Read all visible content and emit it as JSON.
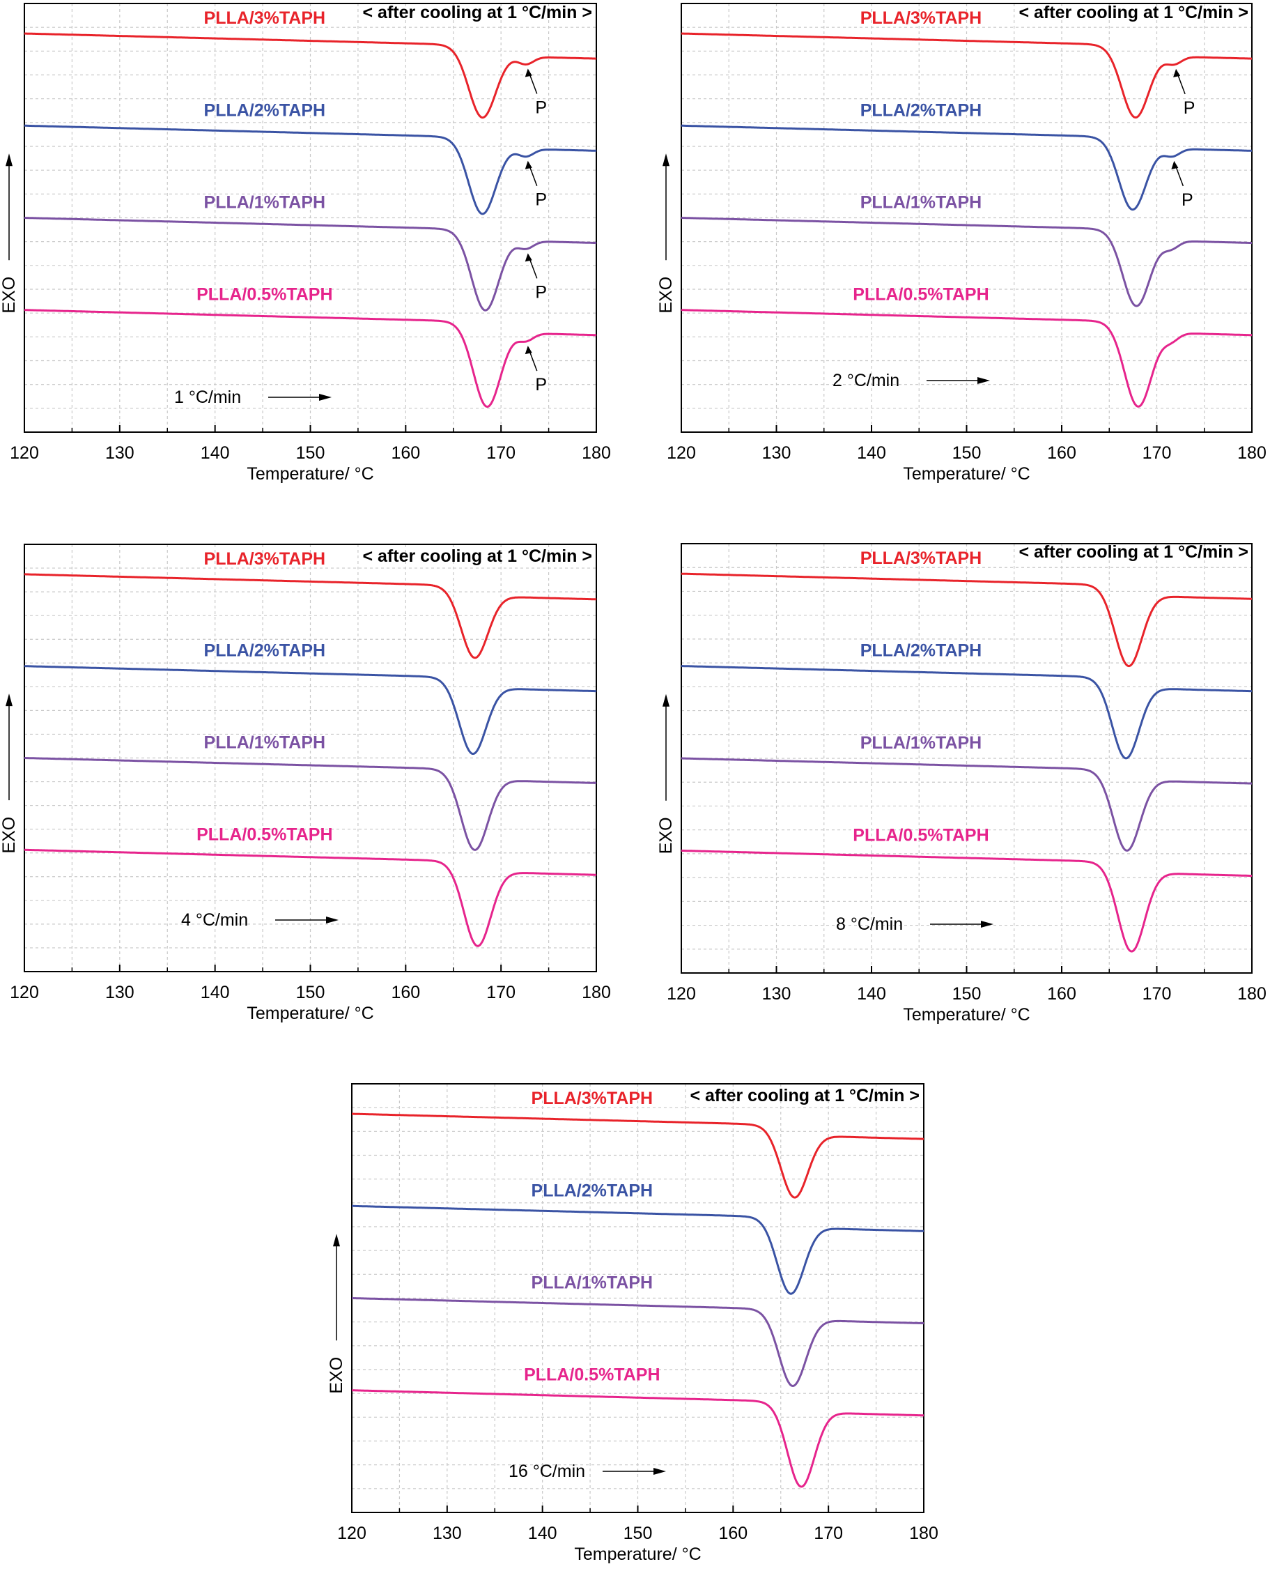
{
  "colors": {
    "PLLA/3%TAPH": "#e8232a",
    "PLLA/2%TAPH": "#3a53a4",
    "PLLA/1%TAPH": "#7b52a3",
    "PLLA/0.5%TAPH": "#e6248c",
    "grid": "#c8c8c8",
    "axis": "#000000"
  },
  "chart_data": [
    {
      "type": "line",
      "title": "< after cooling at 1 °C/min >",
      "rate_label": "1 °C/min",
      "xlabel": "Temperature/ °C",
      "ylabel": "EXO",
      "xlim": [
        120,
        180
      ],
      "x_ticks": [
        "120",
        "130",
        "140",
        "150",
        "160",
        "170",
        "180"
      ],
      "series": [
        {
          "name": "PLLA/3%TAPH",
          "baseline_start": 0.0,
          "baseline_end": -0.4,
          "peak_T": 168.0,
          "peak_depth": 1.6,
          "shoulder_T": 172.6,
          "shoulder_label": "P"
        },
        {
          "name": "PLLA/2%TAPH",
          "baseline_start": 0.0,
          "baseline_end": -0.4,
          "peak_T": 168.0,
          "peak_depth": 1.7,
          "shoulder_T": 172.6,
          "shoulder_label": "P"
        },
        {
          "name": "PLLA/1%TAPH",
          "baseline_start": 0.0,
          "baseline_end": -0.4,
          "peak_T": 168.3,
          "peak_depth": 1.8,
          "shoulder_T": 172.6,
          "shoulder_label": "P"
        },
        {
          "name": "PLLA/0.5%TAPH",
          "baseline_start": 0.0,
          "baseline_end": -0.4,
          "peak_T": 168.5,
          "peak_depth": 1.9,
          "shoulder_T": 172.6,
          "shoulder_label": "P"
        }
      ]
    },
    {
      "type": "line",
      "title": "< after cooling at 1 °C/min >",
      "rate_label": "2 °C/min",
      "xlabel": "Temperature/ °C",
      "ylabel": "EXO",
      "xlim": [
        120,
        180
      ],
      "x_ticks": [
        "120",
        "130",
        "140",
        "150",
        "160",
        "170",
        "180"
      ],
      "series": [
        {
          "name": "PLLA/3%TAPH",
          "baseline_start": 0.0,
          "baseline_end": -0.4,
          "peak_T": 167.7,
          "peak_depth": 1.6,
          "shoulder_T": 171.8,
          "shoulder_label": "P"
        },
        {
          "name": "PLLA/2%TAPH",
          "baseline_start": 0.0,
          "baseline_end": -0.4,
          "peak_T": 167.4,
          "peak_depth": 1.6,
          "shoulder_T": 171.6,
          "shoulder_label": "P"
        },
        {
          "name": "PLLA/1%TAPH",
          "baseline_start": 0.0,
          "baseline_end": -0.4,
          "peak_T": 167.8,
          "peak_depth": 1.7,
          "shoulder_T": 171.5,
          "shoulder_label": ""
        },
        {
          "name": "PLLA/0.5%TAPH",
          "baseline_start": 0.0,
          "baseline_end": -0.4,
          "peak_T": 168.0,
          "peak_depth": 1.9,
          "shoulder_T": 171.5,
          "shoulder_label": ""
        }
      ]
    },
    {
      "type": "line",
      "title": "< after cooling at 1 °C/min >",
      "rate_label": "4 °C/min",
      "xlabel": "Temperature/ °C",
      "ylabel": "EXO",
      "xlim": [
        120,
        180
      ],
      "x_ticks": [
        "120",
        "130",
        "140",
        "150",
        "160",
        "170",
        "180"
      ],
      "series": [
        {
          "name": "PLLA/3%TAPH",
          "baseline_start": 0.0,
          "baseline_end": -0.3,
          "peak_T": 167.2,
          "peak_depth": 1.6
        },
        {
          "name": "PLLA/2%TAPH",
          "baseline_start": 0.0,
          "baseline_end": -0.4,
          "peak_T": 167.0,
          "peak_depth": 1.7
        },
        {
          "name": "PLLA/1%TAPH",
          "baseline_start": 0.0,
          "baseline_end": -0.3,
          "peak_T": 167.2,
          "peak_depth": 1.8
        },
        {
          "name": "PLLA/0.5%TAPH",
          "baseline_start": 0.0,
          "baseline_end": -0.3,
          "peak_T": 167.5,
          "peak_depth": 1.9
        }
      ]
    },
    {
      "type": "line",
      "title": "< after cooling at 1 °C/min >",
      "rate_label": "8 °C/min",
      "xlabel": "Temperature/ °C",
      "ylabel": "EXO",
      "xlim": [
        120,
        180
      ],
      "x_ticks": [
        "120",
        "130",
        "140",
        "150",
        "160",
        "170",
        "180"
      ],
      "series": [
        {
          "name": "PLLA/3%TAPH",
          "baseline_start": 0.0,
          "baseline_end": -0.3,
          "peak_T": 167.0,
          "peak_depth": 1.8
        },
        {
          "name": "PLLA/2%TAPH",
          "baseline_start": 0.0,
          "baseline_end": -0.3,
          "peak_T": 166.7,
          "peak_depth": 1.8
        },
        {
          "name": "PLLA/1%TAPH",
          "baseline_start": 0.0,
          "baseline_end": -0.3,
          "peak_T": 166.8,
          "peak_depth": 1.8
        },
        {
          "name": "PLLA/0.5%TAPH",
          "baseline_start": 0.0,
          "baseline_end": -0.3,
          "peak_T": 167.3,
          "peak_depth": 2.0
        }
      ]
    },
    {
      "type": "line",
      "title": "< after cooling at 1 °C/min >",
      "rate_label": "16 °C/min",
      "xlabel": "Temperature/ °C",
      "ylabel": "EXO",
      "xlim": [
        120,
        180
      ],
      "x_ticks": [
        "120",
        "130",
        "140",
        "150",
        "160",
        "170",
        "180"
      ],
      "series": [
        {
          "name": "PLLA/3%TAPH",
          "baseline_start": 0.0,
          "baseline_end": -0.2,
          "peak_T": 166.4,
          "peak_depth": 1.6
        },
        {
          "name": "PLLA/2%TAPH",
          "baseline_start": 0.0,
          "baseline_end": -0.2,
          "peak_T": 166.0,
          "peak_depth": 1.7
        },
        {
          "name": "PLLA/1%TAPH",
          "baseline_start": 0.0,
          "baseline_end": -0.2,
          "peak_T": 166.2,
          "peak_depth": 1.7
        },
        {
          "name": "PLLA/0.5%TAPH",
          "baseline_start": 0.0,
          "baseline_end": -0.2,
          "peak_T": 167.1,
          "peak_depth": 1.9
        }
      ]
    }
  ]
}
